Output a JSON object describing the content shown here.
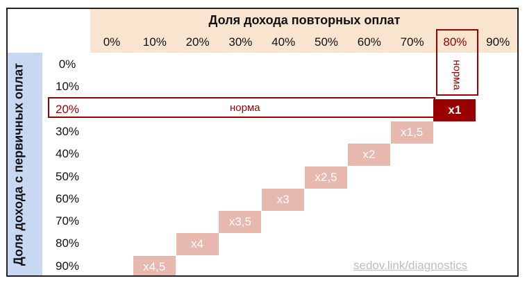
{
  "header": {
    "title": "Доля дохода повторных оплат"
  },
  "sidebar": {
    "title": "Доля дохода с первичных оплат"
  },
  "columns": [
    "0%",
    "10%",
    "20%",
    "30%",
    "40%",
    "50%",
    "60%",
    "70%",
    "80%",
    "90%"
  ],
  "rows": [
    "0%",
    "10%",
    "20%",
    "30%",
    "40%",
    "50%",
    "60%",
    "70%",
    "80%",
    "90%"
  ],
  "highlight": {
    "row_label": "20%",
    "col_label": "80%",
    "row_norm": "норма",
    "col_norm": "норма",
    "color": "#990000"
  },
  "cells": [
    {
      "row": "20%",
      "col": "80%",
      "label": "x1"
    },
    {
      "row": "30%",
      "col": "70%",
      "label": "x1,5"
    },
    {
      "row": "40%",
      "col": "60%",
      "label": "x2"
    },
    {
      "row": "50%",
      "col": "50%",
      "label": "x2,5"
    },
    {
      "row": "60%",
      "col": "40%",
      "label": "x3"
    },
    {
      "row": "70%",
      "col": "30%",
      "label": "x3,5"
    },
    {
      "row": "80%",
      "col": "20%",
      "label": "x4"
    },
    {
      "row": "90%",
      "col": "10%",
      "label": "x4,5"
    }
  ],
  "watermark": "sedov.link/diagnostics",
  "colors": {
    "top_band": "#f9e5cf",
    "left_band": "#c8d8f3",
    "cell": "#e6b8ae",
    "base_cell": "#990000"
  }
}
